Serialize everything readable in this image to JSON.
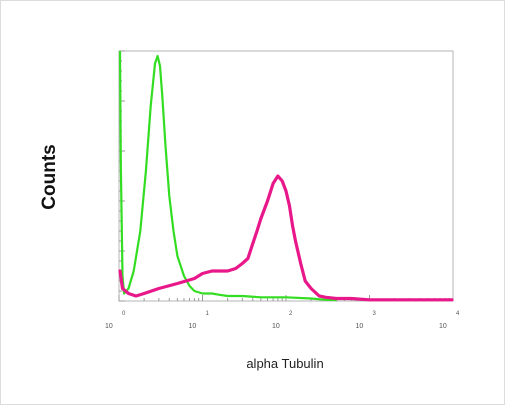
{
  "chart_data": {
    "type": "line",
    "xlabel": "alpha Tubulin",
    "ylabel": "Counts",
    "x_scale": "log",
    "xlim": [
      1,
      10000
    ],
    "ylim": [
      0,
      100
    ],
    "x_tick_labels": [
      {
        "base": "10",
        "exp": "0"
      },
      {
        "base": "10",
        "exp": "1"
      },
      {
        "base": "10",
        "exp": "2"
      },
      {
        "base": "10",
        "exp": "3"
      },
      {
        "base": "10",
        "exp": "4"
      }
    ],
    "series": [
      {
        "color": "#33dd22",
        "x": [
          1.0,
          1.05,
          1.1,
          1.15,
          1.3,
          1.5,
          1.8,
          2.1,
          2.4,
          2.7,
          2.9,
          3.1,
          3.3,
          3.6,
          4.0,
          4.5,
          5.0,
          6.0,
          7.0,
          8.0,
          10.0,
          13.0,
          16.0,
          20.0,
          30.0,
          50.0,
          100.0,
          200.0,
          300.0,
          400.0
        ],
        "y": [
          100,
          55,
          10,
          3,
          5,
          12,
          28,
          52,
          78,
          95,
          98,
          94,
          82,
          62,
          42,
          28,
          18,
          10,
          6,
          4,
          3,
          3,
          2.5,
          2,
          2,
          1.5,
          1.5,
          1,
          0.5,
          0
        ]
      },
      {
        "color": "#e8178a",
        "x": [
          1.0,
          1.1,
          1.3,
          1.6,
          2.0,
          3.0,
          5.0,
          8.0,
          10.0,
          13.0,
          17.0,
          20.0,
          25.0,
          30.0,
          35.0,
          40.0,
          45.0,
          50.0,
          60.0,
          70.0,
          80.0,
          90.0,
          100.0,
          110.0,
          120.0,
          130.0,
          150.0,
          170.0,
          200.0,
          250.0,
          300.0,
          400.0,
          600.0,
          1000.0,
          2000.0,
          5000.0,
          10000.0
        ],
        "y": [
          12,
          5,
          3,
          2,
          3,
          5,
          7,
          9,
          11,
          12,
          12,
          12,
          13,
          15,
          17,
          23,
          28,
          33,
          40,
          47,
          50,
          48,
          44,
          38,
          30,
          24,
          15,
          8,
          5,
          2,
          1.5,
          1,
          1,
          0.5,
          0.5,
          0.5,
          0.5
        ]
      }
    ]
  }
}
